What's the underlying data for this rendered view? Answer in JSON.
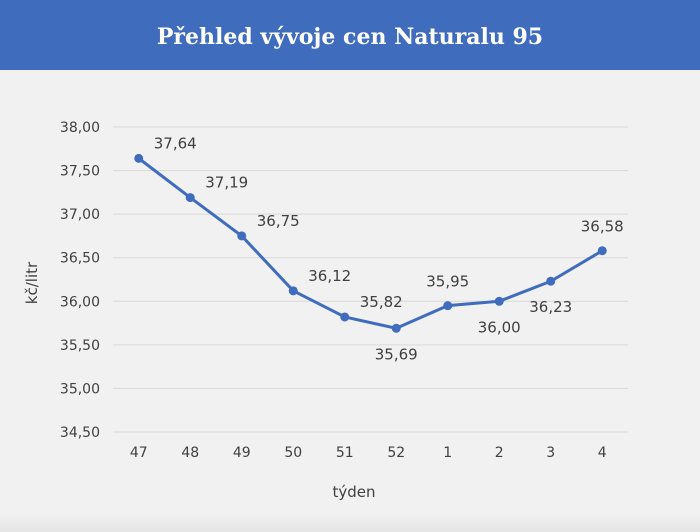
{
  "header": {
    "title": "Přehled vývoje cen Naturalu 95"
  },
  "colors": {
    "header_bg": "#3f6cbc",
    "line": "#3f6cbc",
    "background": "#f1f1f1",
    "grid": "#d9d9d9"
  },
  "chart_data": {
    "type": "line",
    "title": "Přehled vývoje cen Naturalu 95",
    "xlabel": "týden",
    "ylabel": "kč/litr",
    "categories": [
      "47",
      "48",
      "49",
      "50",
      "51",
      "52",
      "1",
      "2",
      "3",
      "4"
    ],
    "series": [
      {
        "values": [
          37.64,
          37.19,
          36.75,
          36.12,
          35.82,
          35.69,
          35.95,
          36.0,
          36.23,
          36.58
        ]
      }
    ],
    "data_labels": [
      "37,64",
      "37,19",
      "36,75",
      "36,12",
      "35,82",
      "35,69",
      "35,95",
      "36,00",
      "36,23",
      "36,58"
    ],
    "label_position": [
      "above-right",
      "above-right",
      "above-right",
      "above-right",
      "above-right",
      "below",
      "above",
      "below",
      "below",
      "above"
    ],
    "ylim": [
      34.5,
      38.0
    ],
    "yticks": [
      34.5,
      35.0,
      35.5,
      36.0,
      36.5,
      37.0,
      37.5,
      38.0
    ],
    "ytick_labels": [
      "34,50",
      "35,00",
      "35,50",
      "36,00",
      "36,50",
      "37,00",
      "37,50",
      "38,00"
    ],
    "grid": true,
    "legend": "none"
  }
}
